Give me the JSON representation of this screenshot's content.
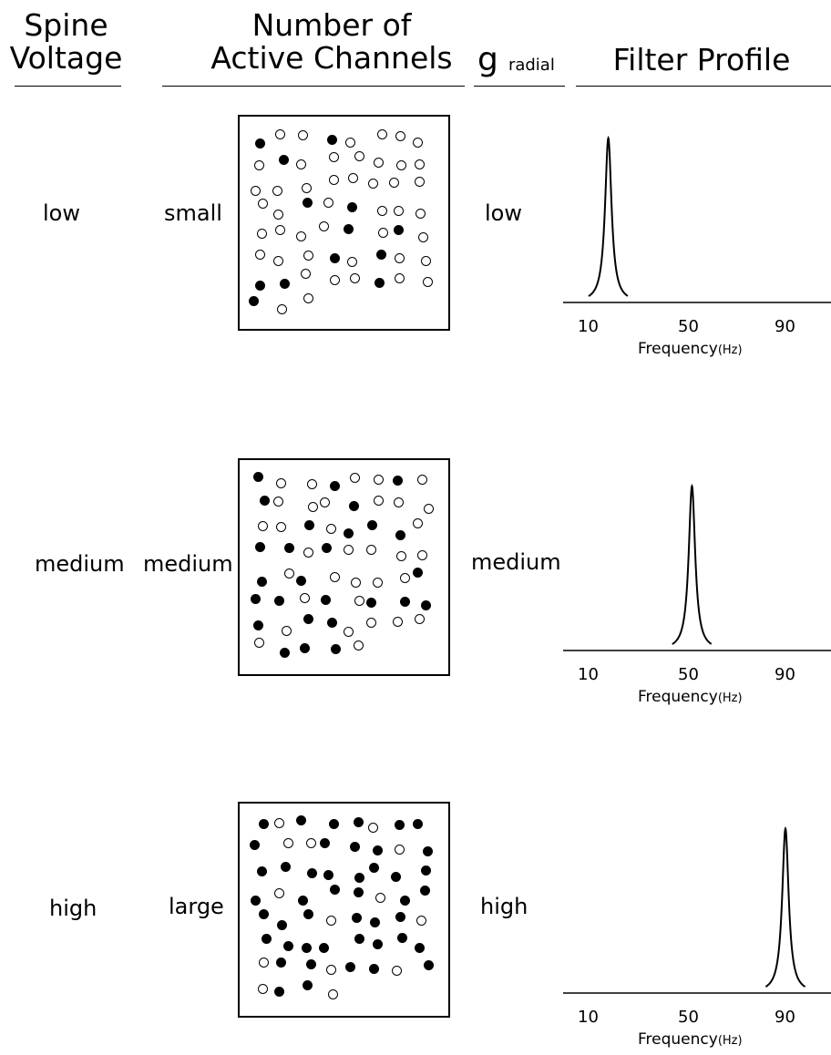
{
  "headers": {
    "spine_voltage": [
      "Spine",
      "Voltage"
    ],
    "active_channels": [
      "Number of",
      "Active Channels"
    ],
    "g_symbol": "g",
    "g_subscript": "radial",
    "filter_profile": "Filter Profile"
  },
  "rows": [
    {
      "spine_voltage": "low",
      "channels": "small",
      "g_radial": "low",
      "dots": {
        "filled": 13,
        "open": 46
      }
    },
    {
      "spine_voltage": "medium",
      "channels": "medium",
      "g_radial": "medium",
      "dots": {
        "filled": 27,
        "open": 34
      }
    },
    {
      "spine_voltage": "high",
      "channels": "large",
      "g_radial": "high",
      "dots": {
        "filled": 46,
        "open": 14
      }
    }
  ],
  "chart_data": [
    {
      "type": "line",
      "xlabel": "Frequency",
      "xlabel_unit": "(Hz)",
      "x_ticks": [
        "10",
        "50",
        "90"
      ],
      "xlim": [
        0,
        100
      ],
      "peak_frequency": 18,
      "peak_height": 0.82
    },
    {
      "type": "line",
      "xlabel": "Frequency",
      "xlabel_unit": "(Hz)",
      "x_ticks": [
        "10",
        "50",
        "90"
      ],
      "xlim": [
        0,
        100
      ],
      "peak_frequency": 52,
      "peak_height": 0.82
    },
    {
      "type": "line",
      "xlabel": "Frequency",
      "xlabel_unit": "(Hz)",
      "x_ticks": [
        "10",
        "50",
        "90"
      ],
      "xlim": [
        0,
        100
      ],
      "peak_frequency": 90,
      "peak_height": 0.82
    }
  ]
}
